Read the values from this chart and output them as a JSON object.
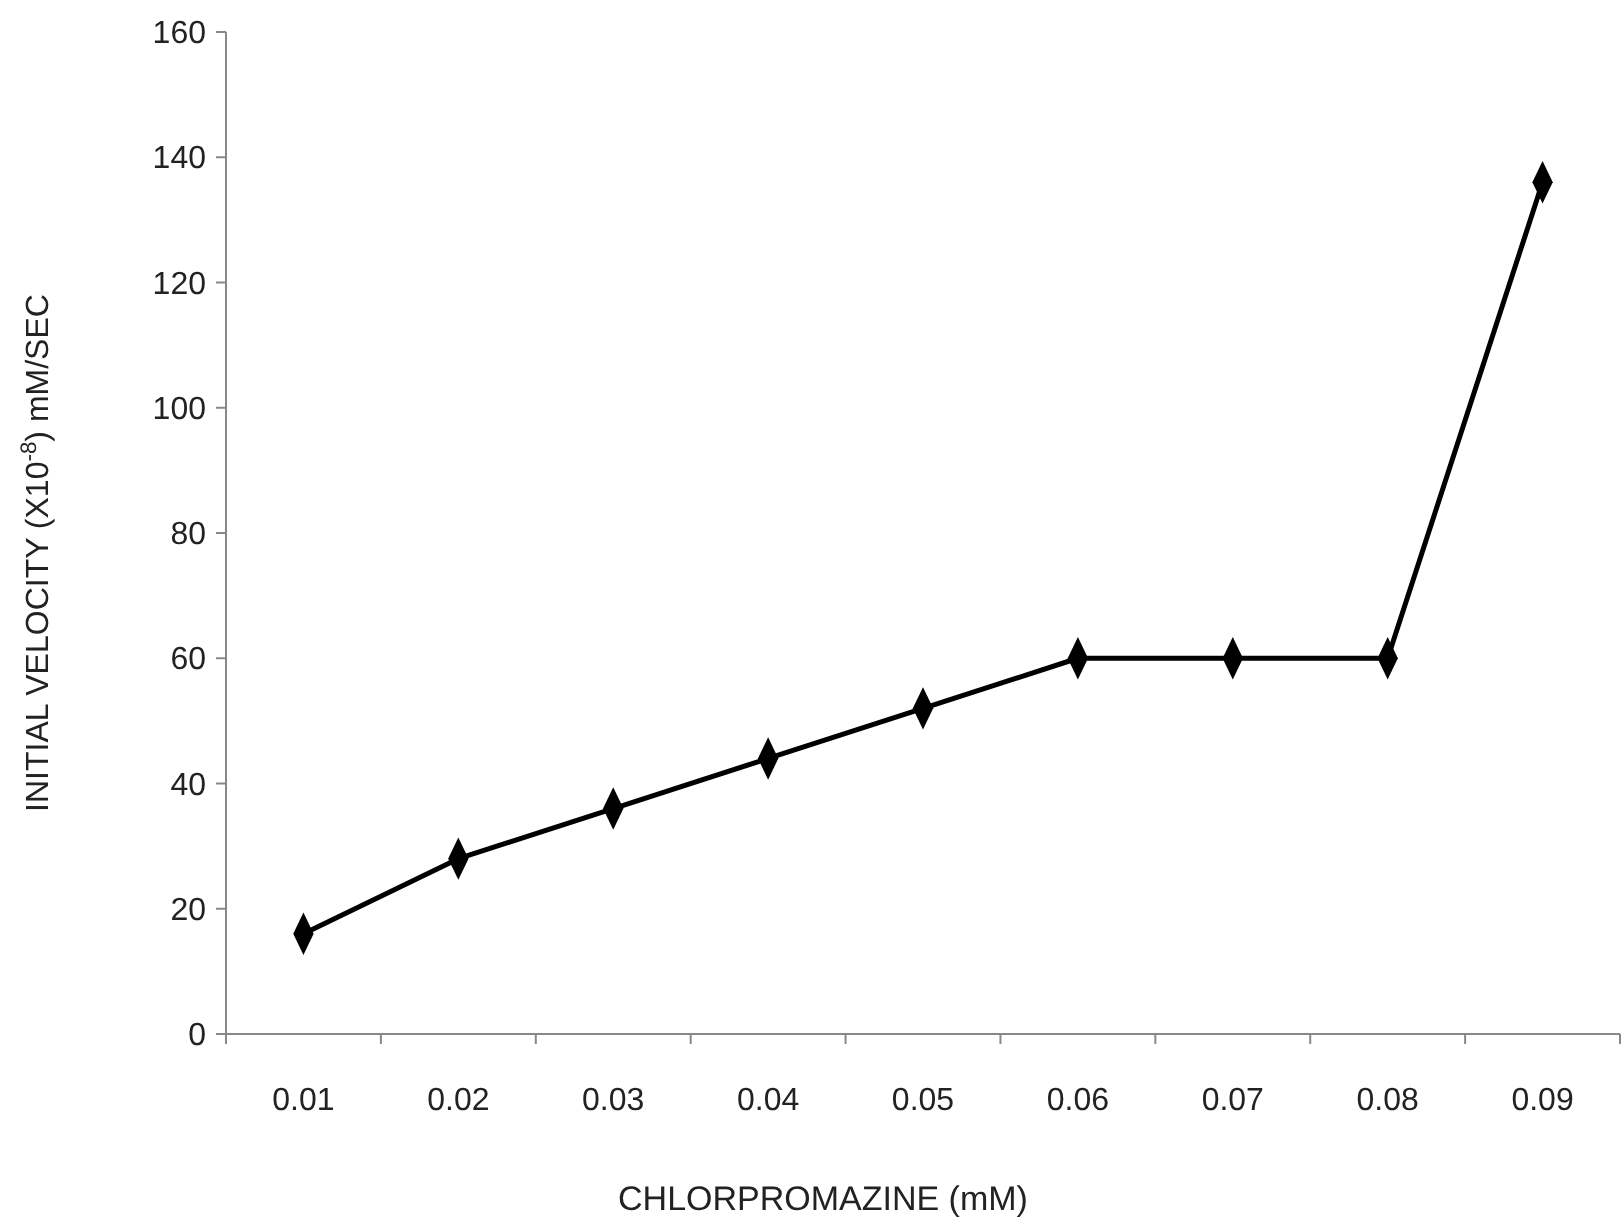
{
  "chart_data": {
    "type": "line",
    "xlabel": "CHLORPROMAZINE  (mM)",
    "ylabel": "INITIAL VELOCITY (X10$^{-8}$) mM/SEC",
    "categories": [
      "0.01",
      "0.02",
      "0.03",
      "0.04",
      "0.05",
      "0.06",
      "0.07",
      "0.08",
      "0.09"
    ],
    "series": [
      {
        "color": "#000000",
        "values": [
          16,
          28,
          36,
          44,
          52,
          60,
          60,
          60,
          136
        ]
      }
    ],
    "ylim": [
      0,
      160
    ],
    "yticks": [
      0,
      20,
      40,
      60,
      80,
      100,
      120,
      140,
      160
    ],
    "marker": "diamond",
    "line_style": "solid"
  }
}
